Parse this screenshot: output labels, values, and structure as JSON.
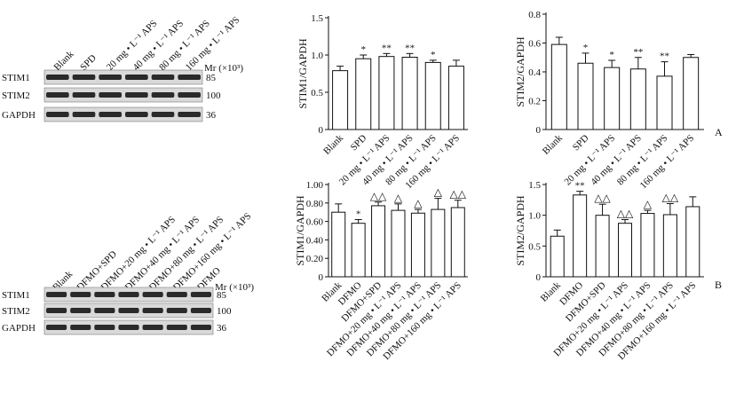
{
  "panel_labels": {
    "a": "A",
    "b": "B"
  },
  "blots": [
    {
      "lanes": [
        "Blank",
        "SPD",
        "20 mg • L⁻¹ APS",
        "40 mg • L⁻¹ APS",
        "80 mg • L⁻¹ APS",
        "160 mg • L⁻¹ APS"
      ],
      "rows": [
        "STIM1",
        "STIM2",
        "GAPDH"
      ],
      "mw": [
        "85",
        "100",
        "36"
      ],
      "mr_label": "Mr (×10³)"
    },
    {
      "lanes": [
        "Blank",
        "DFMO+SPD",
        "DFMO+20 mg • L⁻¹ APS",
        "DFMO+40 mg • L⁻¹ APS",
        "DFMO+80 mg • L⁻¹ APS",
        "DFMO+160 mg • L⁻¹ APS",
        "DFMO"
      ],
      "rows": [
        "STIM1",
        "STIM2",
        "GAPDH"
      ],
      "mw": [
        "85",
        "100",
        "36"
      ],
      "mr_label": "Mr (×10³)"
    }
  ],
  "chart_data": [
    {
      "type": "bar",
      "ylabel": "STIM1/GAPDH",
      "ylim": [
        0,
        1.5
      ],
      "yticks": [
        "0",
        "0.5",
        "1.0",
        "1.5"
      ],
      "categories": [
        "Blank",
        "SPD",
        "20 mg • L⁻¹ APS",
        "40 mg • L⁻¹ APS",
        "80 mg • L⁻¹ APS",
        "160 mg • L⁻¹ APS"
      ],
      "values": [
        0.79,
        0.95,
        0.98,
        0.97,
        0.9,
        0.85
      ],
      "errors": [
        0.06,
        0.05,
        0.04,
        0.05,
        0.03,
        0.08
      ],
      "marks": [
        "",
        "*",
        "**",
        "**",
        "*",
        ""
      ]
    },
    {
      "type": "bar",
      "ylabel": "STIM2/GAPDH",
      "ylim": [
        0,
        0.8
      ],
      "yticks": [
        "0",
        "0.2",
        "0.4",
        "0.6",
        "0.8"
      ],
      "categories": [
        "Blank",
        "SPD",
        "20 mg • L⁻¹ APS",
        "40 mg • L⁻¹ APS",
        "80 mg • L⁻¹ APS",
        "160 mg • L⁻¹ APS"
      ],
      "values": [
        0.59,
        0.46,
        0.43,
        0.42,
        0.37,
        0.5
      ],
      "errors": [
        0.05,
        0.07,
        0.05,
        0.08,
        0.1,
        0.02
      ],
      "marks": [
        "",
        "*",
        "*",
        "**",
        "**",
        ""
      ]
    },
    {
      "type": "bar",
      "ylabel": "STIM1/GAPDH",
      "ylim": [
        0,
        1.0
      ],
      "yticks": [
        "0",
        "0.20",
        "0.40",
        "0.60",
        "0.80",
        "1.00"
      ],
      "categories": [
        "Blank",
        "DFMO",
        "DFMO+SPD",
        "DFMO+20 mg • L⁻¹ APS",
        "DFMO+40 mg • L⁻¹ APS",
        "DFMO+80 mg • L⁻¹ APS",
        "DFMO+160 mg • L⁻¹ APS"
      ],
      "values": [
        0.7,
        0.58,
        0.77,
        0.72,
        0.69,
        0.73,
        0.75
      ],
      "errors": [
        0.09,
        0.04,
        0.04,
        0.07,
        0.04,
        0.12,
        0.08
      ],
      "marks": [
        "",
        "*",
        "△△",
        "△",
        "△",
        "△",
        "△△"
      ]
    },
    {
      "type": "bar",
      "ylabel": "STIM2/GAPDH",
      "ylim": [
        0,
        1.5
      ],
      "yticks": [
        "0",
        "0.5",
        "1.0",
        "1.5"
      ],
      "categories": [
        "Blank",
        "DFMO",
        "DFMO+SPD",
        "DFMO+20 mg • L⁻¹ APS",
        "DFMO+40 mg • L⁻¹ APS",
        "DFMO+80 mg • L⁻¹ APS",
        "DFMO+160 mg • L⁻¹ APS"
      ],
      "values": [
        0.66,
        1.33,
        1.0,
        0.87,
        1.03,
        1.01,
        1.14
      ],
      "errors": [
        0.1,
        0.06,
        0.18,
        0.06,
        0.05,
        0.18,
        0.16
      ],
      "marks": [
        "",
        "**",
        "△△",
        "△△",
        "△",
        "△△",
        ""
      ]
    }
  ]
}
